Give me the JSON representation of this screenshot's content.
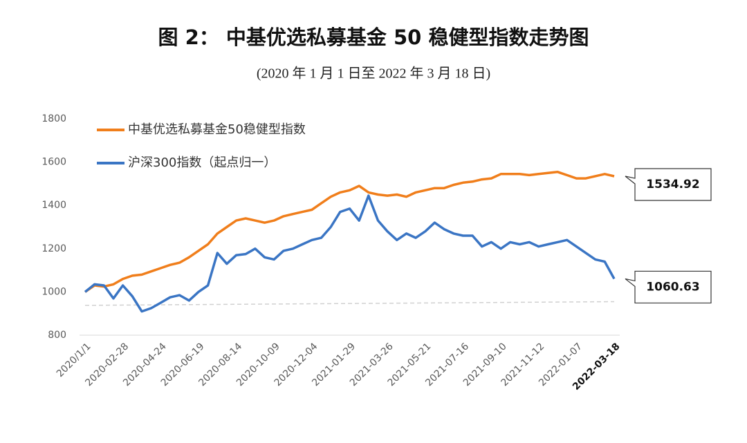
{
  "chart_data": {
    "type": "line",
    "title": "图 2： 中基优选私募基金 50 稳健型指数走势图",
    "subtitle": "(2020 年 1 月 1 日至 2022 年 3 月 18 日)",
    "categories": [
      "2020/1/1",
      null,
      null,
      null,
      "2020-02-28",
      null,
      null,
      null,
      "2020-04-24",
      null,
      null,
      null,
      "2020-06-19",
      null,
      null,
      null,
      "2020-08-14",
      null,
      null,
      null,
      "2020-10-09",
      null,
      null,
      null,
      "2020-12-04",
      null,
      null,
      null,
      "2021-01-29",
      null,
      null,
      null,
      "2021-03-26",
      null,
      null,
      null,
      "2021-05-21",
      null,
      null,
      null,
      "2021-07-16",
      null,
      null,
      null,
      "2021-09-10",
      null,
      null,
      null,
      "2021-11-12",
      null,
      null,
      null,
      "2022-01-07",
      null,
      null,
      null,
      "2022-03-18"
    ],
    "series": [
      {
        "name": "中基优选私募基金50稳健型指数",
        "color": "#f07e1b",
        "values": [
          1000,
          1030,
          1025,
          1035,
          1060,
          1075,
          1080,
          1095,
          1110,
          1125,
          1135,
          1160,
          1190,
          1220,
          1270,
          1300,
          1330,
          1340,
          1330,
          1320,
          1330,
          1350,
          1360,
          1370,
          1380,
          1410,
          1440,
          1460,
          1470,
          1490,
          1460,
          1450,
          1445,
          1450,
          1440,
          1460,
          1470,
          1480,
          1480,
          1495,
          1505,
          1510,
          1520,
          1525,
          1545,
          1545,
          1545,
          1540,
          1545,
          1550,
          1555,
          1540,
          1525,
          1525,
          1535,
          1545,
          1534.92
        ]
      },
      {
        "name": "沪深300指数（起点归一）",
        "color": "#3a75c4",
        "values": [
          1000,
          1035,
          1030,
          970,
          1030,
          980,
          910,
          925,
          950,
          975,
          985,
          960,
          1000,
          1030,
          1180,
          1130,
          1170,
          1175,
          1200,
          1160,
          1150,
          1190,
          1200,
          1220,
          1240,
          1250,
          1300,
          1370,
          1385,
          1330,
          1445,
          1330,
          1280,
          1240,
          1270,
          1250,
          1280,
          1320,
          1290,
          1270,
          1260,
          1260,
          1210,
          1230,
          1200,
          1230,
          1220,
          1230,
          1210,
          1220,
          1230,
          1240,
          1210,
          1180,
          1150,
          1140,
          1060.63
        ]
      }
    ],
    "trend_line": {
      "values": [
        938,
        955
      ],
      "color": "#d0d0d0"
    },
    "ylim": [
      800,
      1800
    ],
    "yticks": [
      800,
      1000,
      1200,
      1400,
      1600,
      1800
    ],
    "grid": false
  }
}
